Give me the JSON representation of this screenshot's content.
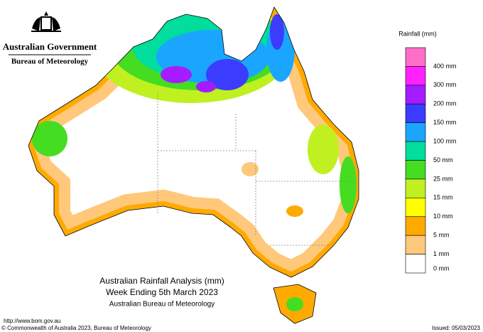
{
  "header": {
    "government": "Australian Government",
    "bureau": "Bureau of Meteorology"
  },
  "legend": {
    "title": "Rainfall (mm)",
    "items": [
      {
        "color": "#ff6ec7",
        "label": "400 mm"
      },
      {
        "color": "#ff22ff",
        "label": "300 mm"
      },
      {
        "color": "#a41cff",
        "label": "200 mm"
      },
      {
        "color": "#3c3cff",
        "label": "150 mm"
      },
      {
        "color": "#1aa6ff",
        "label": "100 mm"
      },
      {
        "color": "#00dd9c",
        "label": "50 mm"
      },
      {
        "color": "#44dd22",
        "label": "25 mm"
      },
      {
        "color": "#c0f020",
        "label": "15 mm"
      },
      {
        "color": "#ffff00",
        "label": "10 mm"
      },
      {
        "color": "#ffaa00",
        "label": "5 mm"
      },
      {
        "color": "#ffc87a",
        "label": "1 mm"
      },
      {
        "color": "#ffffff",
        "label": "0 mm"
      }
    ]
  },
  "title": {
    "line1": "Australian Rainfall Analysis (mm)",
    "line2": "Week Ending 5th March 2023",
    "line3": "Australian Bureau of Meteorology"
  },
  "footer": {
    "url": "http://www.bom.gov.au",
    "copyright": "© Commonwealth of Australia 2023, Bureau of Meteorology",
    "issued": "Issued: 05/03/2023"
  }
}
